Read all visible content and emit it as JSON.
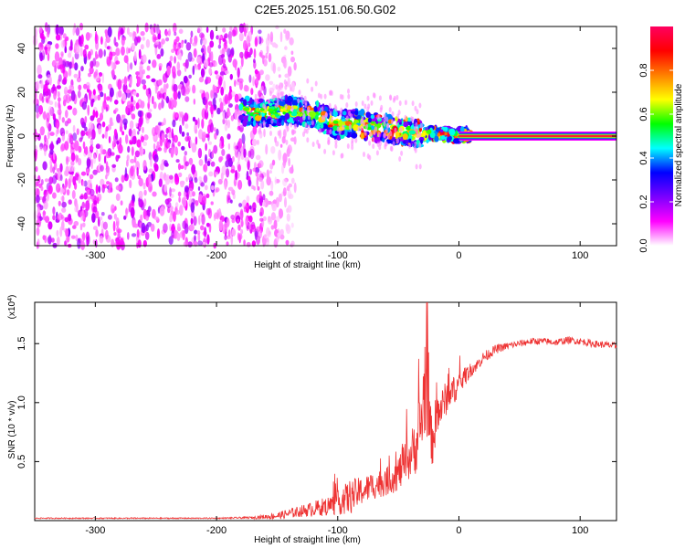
{
  "title": "C2E5.2025.151.06.50.G02",
  "chart_data": [
    {
      "type": "heatmap",
      "xlabel": "Height of straight line (km)",
      "ylabel": "Frequency (Hz)",
      "xlim": [
        -350,
        130
      ],
      "ylim": [
        -50,
        50
      ],
      "xticks": [
        -300,
        -200,
        -100,
        0,
        100
      ],
      "yticks": [
        -40,
        -20,
        0,
        20,
        40
      ],
      "colorbar": {
        "label": "Normalized spectral amplitude",
        "range": [
          0,
          1
        ],
        "ticks": [
          "0.0",
          "0.2",
          "0.4",
          "0.6",
          "0.8"
        ],
        "tick_values": [
          0.0,
          0.2,
          0.4,
          0.6,
          0.8
        ],
        "colormap": [
          "#ffffff",
          "#ff00ff",
          "#7b00ff",
          "#0000ff",
          "#00ffff",
          "#00ff00",
          "#ffff00",
          "#ff8000",
          "#ff0000",
          "#ff0060"
        ]
      },
      "features": [
        {
          "region": "noise",
          "x": [
            -350,
            -160
          ],
          "freq": [
            -50,
            50
          ],
          "amplitude": 0.15
        },
        {
          "region": "trace",
          "points": [
            [
              -180,
              12
            ],
            [
              -160,
              10
            ],
            [
              -140,
              12
            ],
            [
              -120,
              10
            ],
            [
              -100,
              5
            ],
            [
              -85,
              6
            ],
            [
              -70,
              4
            ],
            [
              -55,
              3
            ],
            [
              -45,
              2
            ],
            [
              -35,
              1
            ],
            [
              -25,
              1
            ],
            [
              -10,
              1
            ],
            [
              0,
              0.5
            ],
            [
              130,
              0.5
            ]
          ]
        },
        {
          "region": "carrier",
          "x": [
            0,
            130
          ],
          "freq": 0,
          "amplitude": 1.0
        }
      ]
    },
    {
      "type": "line",
      "xlabel": "Height of straight line (km)",
      "ylabel": "SNR (10 * v/v)",
      "y_multiplier": "(x10",
      "y_multiplier_exp": "4",
      "y_multiplier_close": ")",
      "xlim": [
        -350,
        130
      ],
      "ylim": [
        0,
        1.85
      ],
      "xticks": [
        -300,
        -200,
        -100,
        0,
        100
      ],
      "yticks": [
        "0.5",
        "1.0",
        "1.5"
      ],
      "ytick_values": [
        0.5,
        1.0,
        1.5
      ],
      "color": "#ee3333",
      "series": [
        {
          "x": [
            -350,
            -300,
            -250,
            -200,
            -170,
            -150,
            -130,
            -110,
            -100,
            -90,
            -80,
            -70,
            -60,
            -50,
            -40,
            -35,
            -30,
            -28,
            -26,
            -24,
            -22,
            -20,
            -15,
            -10,
            -5,
            0,
            5,
            10,
            15,
            20,
            30,
            40,
            50,
            60,
            70,
            80,
            90,
            100,
            110,
            120,
            130
          ],
          "y": [
            0.02,
            0.02,
            0.02,
            0.02,
            0.025,
            0.04,
            0.08,
            0.12,
            0.15,
            0.2,
            0.25,
            0.3,
            0.33,
            0.4,
            0.55,
            0.65,
            0.9,
            1.2,
            1.05,
            0.8,
            0.65,
            0.8,
            0.95,
            1.05,
            1.1,
            1.15,
            1.22,
            1.28,
            1.32,
            1.38,
            1.45,
            1.48,
            1.5,
            1.52,
            1.52,
            1.51,
            1.53,
            1.52,
            1.5,
            1.49,
            1.48
          ],
          "noise": [
            0.005,
            0.005,
            0.005,
            0.005,
            0.01,
            0.03,
            0.05,
            0.08,
            0.1,
            0.15,
            0.12,
            0.12,
            0.12,
            0.15,
            0.2,
            0.25,
            0.35,
            0.5,
            0.35,
            0.25,
            0.2,
            0.22,
            0.15,
            0.15,
            0.12,
            0.1,
            0.08,
            0.06,
            0.05,
            0.05,
            0.04,
            0.03,
            0.03,
            0.03,
            0.03,
            0.03,
            0.03,
            0.03,
            0.03,
            0.03,
            0.03
          ]
        }
      ]
    }
  ]
}
